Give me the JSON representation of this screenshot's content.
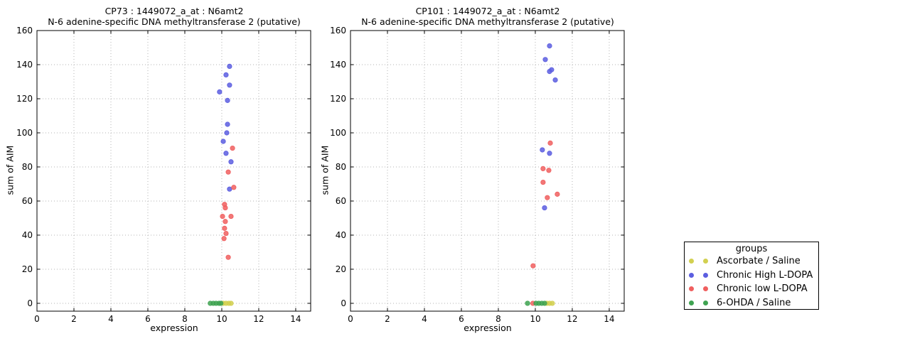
{
  "figure": {
    "background": "#ffffff"
  },
  "legend": {
    "title": "groups",
    "items": [
      {
        "label": "Ascorbate / Saline",
        "color": "#d2d050"
      },
      {
        "label": "Chronic High L-DOPA",
        "color": "#5c5ee0"
      },
      {
        "label": "Chronic low L-DOPA",
        "color": "#f05f5f"
      },
      {
        "label": "6-OHDA / Saline",
        "color": "#3fa351"
      }
    ]
  },
  "chart_data": [
    {
      "type": "scatter",
      "title": "CP73 : 1449072_a_at : N6amt2",
      "subtitle": "N-6 adenine-specific DNA methyltransferase 2 (putative)",
      "xlabel": "expression",
      "ylabel": "sum of AIM",
      "xlim": [
        0,
        14.81
      ],
      "ylim": [
        -4.6,
        160
      ],
      "xticks": [
        0,
        2,
        4,
        6,
        8,
        10,
        12,
        14
      ],
      "yticks": [
        0,
        20,
        40,
        60,
        80,
        100,
        120,
        140,
        160
      ],
      "grid": "dotted",
      "legend_position": "outside-right",
      "series": [
        {
          "name": "Ascorbate / Saline",
          "color": "#d2d050",
          "points": [
            [
              10.08,
              0
            ],
            [
              10.23,
              0
            ],
            [
              10.38,
              0
            ],
            [
              10.5,
              0
            ]
          ]
        },
        {
          "name": "Chronic High L-DOPA",
          "color": "#5c5ee0",
          "points": [
            [
              10.42,
              139
            ],
            [
              10.23,
              134
            ],
            [
              10.42,
              128
            ],
            [
              9.88,
              124
            ],
            [
              10.31,
              119
            ],
            [
              10.31,
              105
            ],
            [
              10.27,
              100
            ],
            [
              10.08,
              95
            ],
            [
              10.23,
              88
            ],
            [
              10.5,
              83
            ],
            [
              10.42,
              67
            ]
          ]
        },
        {
          "name": "Chronic low L-DOPA",
          "color": "#f05f5f",
          "points": [
            [
              10.58,
              91
            ],
            [
              10.35,
              77
            ],
            [
              10.65,
              68
            ],
            [
              10.15,
              58
            ],
            [
              10.19,
              56
            ],
            [
              10.04,
              51
            ],
            [
              10.5,
              51
            ],
            [
              10.19,
              48
            ],
            [
              10.15,
              44
            ],
            [
              10.23,
              41
            ],
            [
              10.12,
              38
            ],
            [
              10.35,
              27
            ]
          ]
        },
        {
          "name": "6-OHDA / Saline",
          "color": "#3fa351",
          "points": [
            [
              9.38,
              0
            ],
            [
              9.54,
              0
            ],
            [
              9.69,
              0
            ],
            [
              9.85,
              0
            ],
            [
              9.95,
              0
            ]
          ]
        }
      ]
    },
    {
      "type": "scatter",
      "title": "CP101 : 1449072_a_at : N6amt2",
      "subtitle": "N-6 adenine-specific DNA methyltransferase 2 (putative)",
      "xlabel": "expression",
      "ylabel": "sum of AIM",
      "xlim": [
        0,
        14.81
      ],
      "ylim": [
        -4.6,
        160
      ],
      "xticks": [
        0,
        2,
        4,
        6,
        8,
        10,
        12,
        14
      ],
      "yticks": [
        0,
        20,
        40,
        60,
        80,
        100,
        120,
        140,
        160
      ],
      "grid": "dotted",
      "legend_position": "outside-right",
      "series": [
        {
          "name": "Ascorbate / Saline",
          "color": "#d2d050",
          "points": [
            [
              10.62,
              0
            ],
            [
              10.77,
              0
            ],
            [
              10.92,
              0
            ]
          ]
        },
        {
          "name": "Chronic High L-DOPA",
          "color": "#5c5ee0",
          "points": [
            [
              10.77,
              151
            ],
            [
              10.54,
              143
            ],
            [
              10.88,
              137
            ],
            [
              10.77,
              136
            ],
            [
              11.08,
              131
            ],
            [
              10.38,
              90
            ],
            [
              10.77,
              88
            ],
            [
              10.5,
              56
            ]
          ]
        },
        {
          "name": "Chronic low L-DOPA",
          "color": "#f05f5f",
          "points": [
            [
              10.81,
              94
            ],
            [
              10.42,
              79
            ],
            [
              10.73,
              78
            ],
            [
              10.42,
              71
            ],
            [
              11.19,
              64
            ],
            [
              10.65,
              62
            ],
            [
              9.88,
              22
            ],
            [
              9.87,
              0
            ]
          ]
        },
        {
          "name": "6-OHDA / Saline",
          "color": "#3fa351",
          "points": [
            [
              9.58,
              0
            ],
            [
              10.04,
              0
            ],
            [
              10.19,
              0
            ],
            [
              10.35,
              0
            ],
            [
              10.5,
              0
            ]
          ]
        }
      ]
    }
  ]
}
